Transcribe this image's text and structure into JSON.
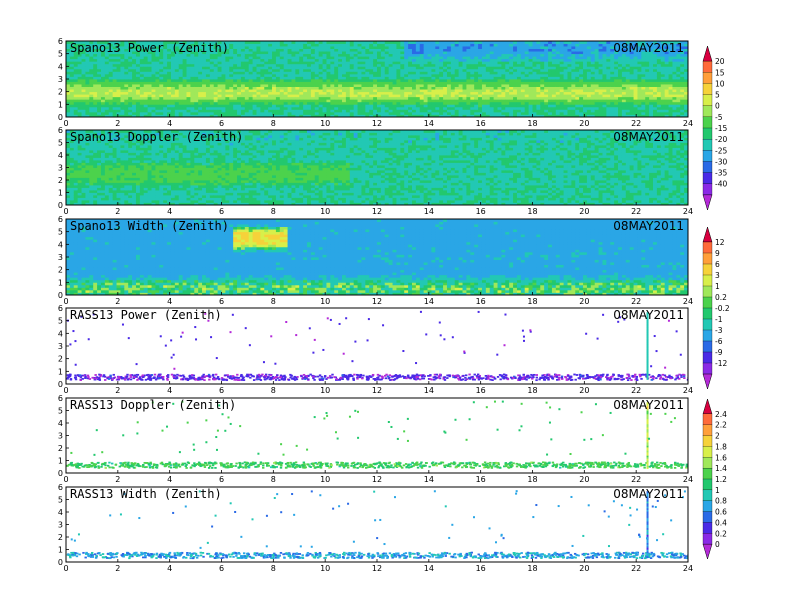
{
  "chart_data": [
    {
      "type": "heatmap",
      "title": "Spano13 Power (Zenith)",
      "date": "08MAY2011",
      "xlim": [
        0,
        24
      ],
      "ylim": [
        0,
        6
      ],
      "xticks": [
        "0",
        "2",
        "4",
        "6",
        "8",
        "10",
        "12",
        "14",
        "16",
        "18",
        "20",
        "22",
        "24"
      ],
      "yticks": [
        "0",
        "1",
        "2",
        "3",
        "4",
        "5",
        "6"
      ],
      "colorbar": "cb1",
      "style": "dense",
      "features": [
        {
          "y_center": 1.9,
          "value": 6,
          "x_range": [
            0,
            24
          ]
        },
        {
          "y_center": 0.4,
          "value": -20,
          "x_range": [
            0,
            24
          ]
        },
        {
          "y_center": 5.4,
          "value": -30,
          "x_range": [
            13,
            24
          ]
        }
      ]
    },
    {
      "type": "heatmap",
      "title": "Spano13 Doppler (Zenith)",
      "date": "08MAY2011",
      "xlim": [
        0,
        24
      ],
      "ylim": [
        0,
        6
      ],
      "xticks": [
        "0",
        "2",
        "4",
        "6",
        "8",
        "10",
        "12",
        "14",
        "16",
        "18",
        "20",
        "22",
        "24"
      ],
      "yticks": [
        "0",
        "1",
        "2",
        "3",
        "4",
        "5",
        "6"
      ],
      "colorbar": "cb1",
      "style": "dense",
      "features": [
        {
          "y_center": 2.5,
          "value": -10,
          "x_range": [
            0,
            11
          ]
        },
        {
          "y_center": 5.5,
          "value": -22,
          "x_range": [
            0,
            24
          ]
        }
      ]
    },
    {
      "type": "heatmap",
      "title": "Spano13 Width (Zenith)",
      "date": "08MAY2011",
      "xlim": [
        0,
        24
      ],
      "ylim": [
        0,
        6
      ],
      "xticks": [
        "0",
        "2",
        "4",
        "6",
        "8",
        "10",
        "12",
        "14",
        "16",
        "18",
        "20",
        "22",
        "24"
      ],
      "yticks": [
        "0",
        "1",
        "2",
        "3",
        "4",
        "5",
        "6"
      ],
      "colorbar": "cb2",
      "style": "dense",
      "features": [
        {
          "y_center": 4.5,
          "value": 6,
          "x_range": [
            6.5,
            8.5
          ]
        },
        {
          "y_center": 3.0,
          "value": -4,
          "x_range": [
            12,
            24
          ]
        },
        {
          "y_center": 0.5,
          "value": 1,
          "x_range": [
            0,
            24
          ]
        }
      ]
    },
    {
      "type": "heatmap",
      "title": "RASS13 Power (Zenith)",
      "date": "08MAY2011",
      "xlim": [
        0,
        24
      ],
      "ylim": [
        0,
        6
      ],
      "xticks": [
        "0",
        "2",
        "4",
        "6",
        "8",
        "10",
        "12",
        "14",
        "16",
        "18",
        "20",
        "22",
        "24"
      ],
      "yticks": [
        "0",
        "1",
        "2",
        "3",
        "4",
        "5",
        "6"
      ],
      "colorbar": "cb2",
      "style": "sparse",
      "features": [
        {
          "y_center": 0.6,
          "value": -11,
          "x_range": [
            0,
            24
          ]
        },
        {
          "x_spike": 22.4,
          "value": -2,
          "y_range": [
            0.5,
            5.8
          ]
        }
      ]
    },
    {
      "type": "heatmap",
      "title": "RASS13 Doppler (Zenith)",
      "date": "08MAY2011",
      "xlim": [
        0,
        24
      ],
      "ylim": [
        0,
        6
      ],
      "xticks": [
        "0",
        "2",
        "4",
        "6",
        "8",
        "10",
        "12",
        "14",
        "16",
        "18",
        "20",
        "22",
        "24"
      ],
      "yticks": [
        "0",
        "1",
        "2",
        "3",
        "4",
        "5",
        "6"
      ],
      "colorbar": "cb3",
      "style": "sparse",
      "features": [
        {
          "y_center": 0.7,
          "value": 1.2,
          "x_range": [
            0,
            24
          ]
        },
        {
          "x_spike": 22.4,
          "value": 1.6,
          "y_range": [
            0.5,
            5.8
          ]
        }
      ]
    },
    {
      "type": "heatmap",
      "title": "RASS13 Width (Zenith)",
      "date": "08MAY2011",
      "xlim": [
        0,
        24
      ],
      "ylim": [
        0,
        6
      ],
      "xticks": [
        "0",
        "2",
        "4",
        "6",
        "8",
        "10",
        "12",
        "14",
        "16",
        "18",
        "20",
        "22",
        "24"
      ],
      "yticks": [
        "0",
        "1",
        "2",
        "3",
        "4",
        "5",
        "6"
      ],
      "colorbar": "cb3",
      "style": "sparse",
      "features": [
        {
          "y_center": 0.6,
          "value": 0.7,
          "x_range": [
            0,
            24
          ]
        },
        {
          "x_spike": 22.4,
          "value": 0.6,
          "y_range": [
            0.5,
            5.8
          ]
        }
      ]
    }
  ],
  "colorbars": {
    "cb1": {
      "labels": [
        "20",
        "15",
        "10",
        "5",
        "0",
        "-5",
        "-15",
        "-20",
        "-25",
        "-30",
        "-35",
        "-40"
      ],
      "colors": [
        "#d8003f",
        "#ff6a3a",
        "#ff9f3a",
        "#f6d23a",
        "#d8ef4a",
        "#a0e85a",
        "#4cd24c",
        "#22c86e",
        "#22c8b4",
        "#2aa6e6",
        "#2a6ae6",
        "#4a2ae6",
        "#8a2ae6",
        "#b42ad8"
      ]
    },
    "cb2": {
      "labels": [
        "12",
        "9",
        "6",
        "3",
        "1",
        "0.2",
        "-0.2",
        "-1",
        "-3",
        "-6",
        "-9",
        "-12"
      ],
      "colors": [
        "#d8003f",
        "#ff6a3a",
        "#ff9f3a",
        "#f6d23a",
        "#d8ef4a",
        "#a0e85a",
        "#4cd24c",
        "#22c86e",
        "#22c8b4",
        "#2aa6e6",
        "#2a6ae6",
        "#4a2ae6",
        "#8a2ae6",
        "#b42ad8"
      ]
    },
    "cb3": {
      "labels": [
        "2.4",
        "2.2",
        "2",
        "1.8",
        "1.6",
        "1.4",
        "1.2",
        "1",
        "0.8",
        "0.6",
        "0.4",
        "0.2",
        "0"
      ],
      "colors": [
        "#d8003f",
        "#ff6a3a",
        "#ff9f3a",
        "#f6d23a",
        "#d8ef4a",
        "#a0e85a",
        "#4cd24c",
        "#22c86e",
        "#22c8b4",
        "#2aa6e6",
        "#2a6ae6",
        "#4a2ae6",
        "#8a2ae6",
        "#b42ad8"
      ]
    }
  }
}
